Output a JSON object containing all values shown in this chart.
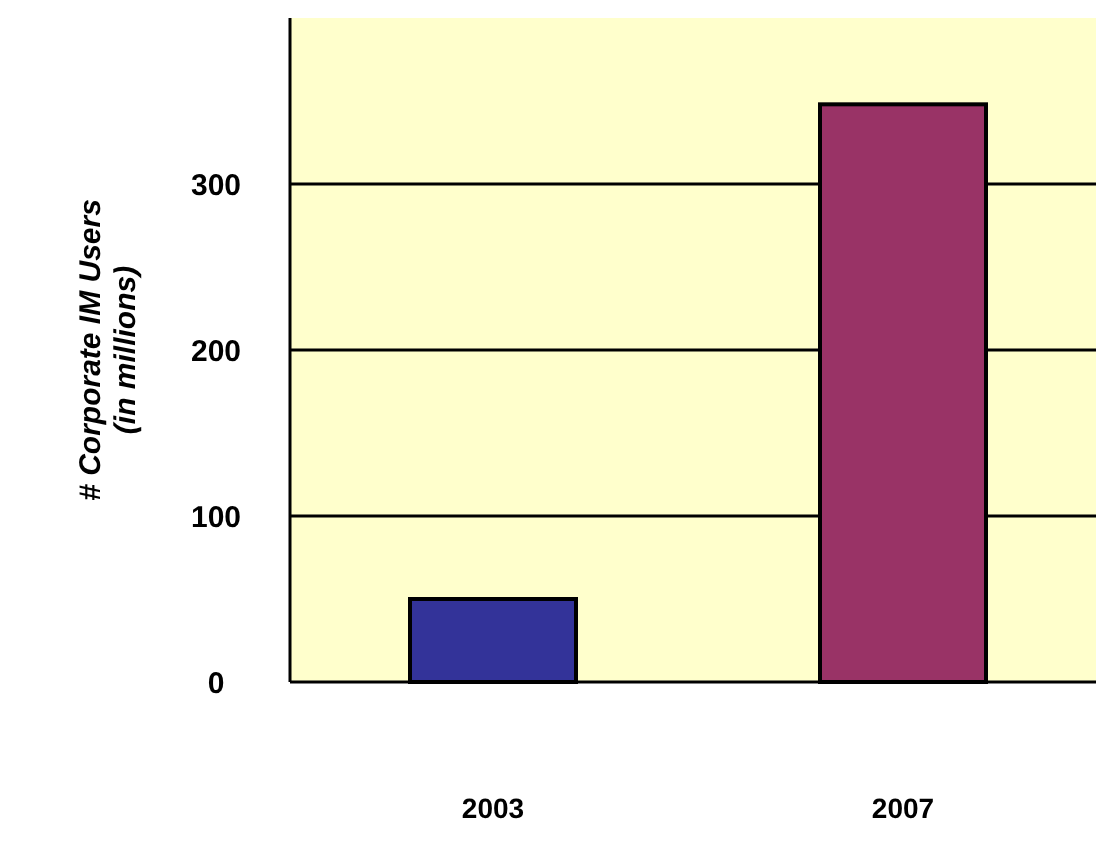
{
  "chart_data": {
    "type": "bar",
    "ylabel": "# Corporate IM Users\n(in millions)",
    "categories": [
      "2003",
      "2007"
    ],
    "values": [
      50,
      348
    ],
    "colors": [
      "#333399",
      "#993366"
    ],
    "ylim": [
      0,
      400
    ],
    "yticks": [
      0,
      100,
      200,
      300
    ],
    "grid": "y"
  }
}
